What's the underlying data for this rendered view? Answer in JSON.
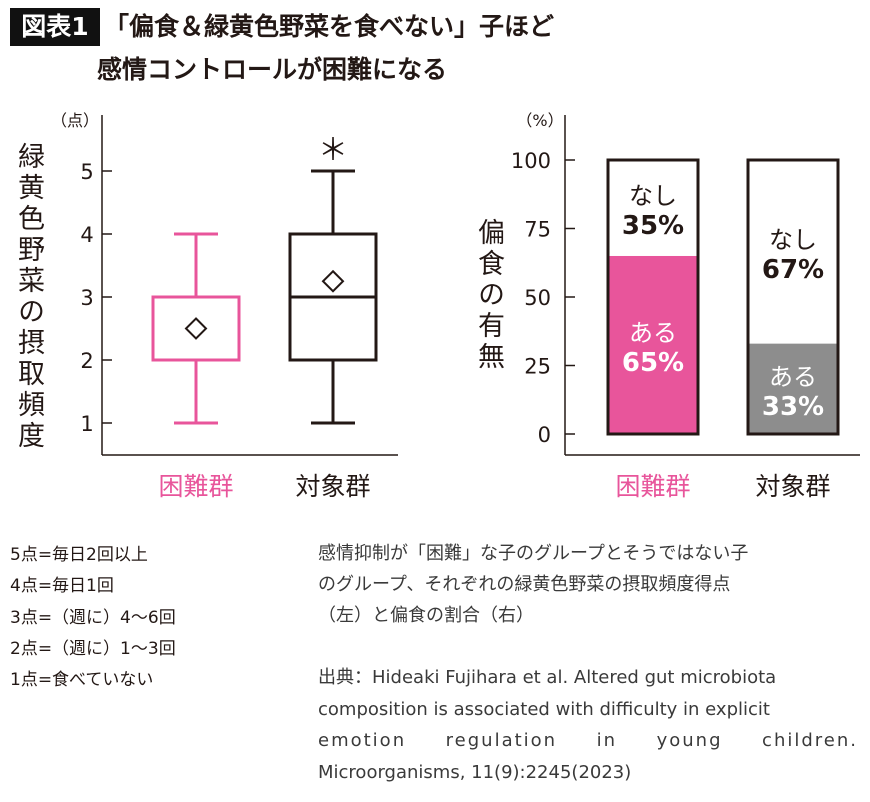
{
  "header": {
    "badge": "図表1",
    "title_line1": "「偏食＆緑黄色野菜を食べない」子ほど",
    "title_line2": "感情コントロールが困難になる"
  },
  "colors": {
    "difficult": "#e8559b",
    "control": "#231815",
    "bar_control_yes": "#8d8d8d"
  },
  "chart_data": [
    {
      "type": "box",
      "unit_label": "（点）",
      "ylabel": "緑黄色野菜の摂取頻度",
      "ylim": [
        0.5,
        5.6
      ],
      "yticks": [
        1,
        2,
        3,
        4,
        5
      ],
      "categories": [
        "困難群",
        "対象群"
      ],
      "boxes": [
        {
          "name": "困難群",
          "min": 1,
          "q1": 2,
          "median": 3,
          "q3": 3,
          "max": 4,
          "mean": 2.5,
          "color": "#e8559b"
        },
        {
          "name": "対象群",
          "min": 1,
          "q1": 2,
          "median": 3,
          "q3": 4,
          "max": 5,
          "mean": 3.25,
          "color": "#231815"
        }
      ],
      "annotation": "＊",
      "grid": false
    },
    {
      "type": "stacked_bar",
      "unit_label": "（%）",
      "ylabel": "偏食の有無",
      "ylim": [
        0,
        100
      ],
      "yticks": [
        0,
        25,
        50,
        75,
        100
      ],
      "categories": [
        "困難群",
        "対象群"
      ],
      "series": [
        {
          "name": "ある",
          "values": [
            65,
            33
          ],
          "colors": [
            "#e8559b",
            "#8d8d8d"
          ],
          "labels": [
            "65%",
            "33%"
          ]
        },
        {
          "name": "なし",
          "values": [
            35,
            67
          ],
          "colors": [
            "#ffffff",
            "#ffffff"
          ],
          "labels": [
            "35%",
            "67%"
          ]
        }
      ],
      "grid": false
    }
  ],
  "legend_notes": [
    "5点=毎日2回以上",
    "4点=毎日1回",
    "3点=（週に）4〜6回",
    "2点=（週に）1〜3回",
    "1点=食べていない"
  ],
  "caption": [
    "感情抑制が「困難」な子のグループとそうではない子",
    "のグループ、それぞれの緑黄色野菜の摂取頻度得点",
    "（左）と偏食の割合（右）"
  ],
  "source": [
    "出典：Hideaki Fujihara et al. Altered gut microbiota",
    "composition is associated with difficulty in explicit",
    "emotion regulation in young children.",
    "Microorganisms, 11(9):2245(2023)"
  ]
}
